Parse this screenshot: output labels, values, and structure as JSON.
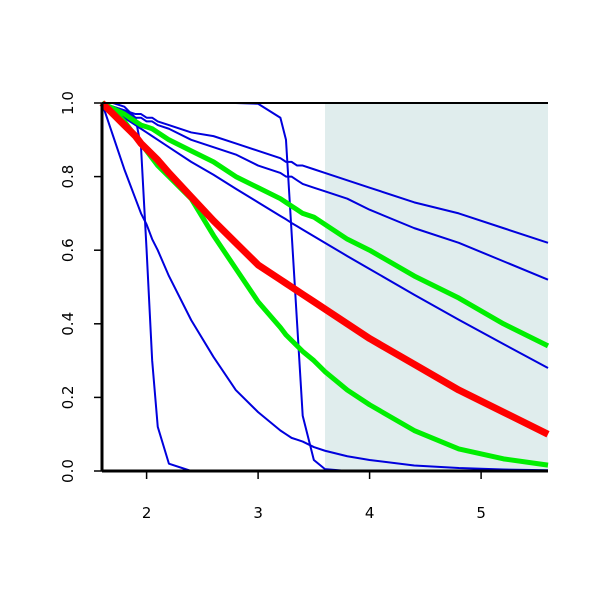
{
  "chart_data": {
    "type": "line",
    "x": [
      1.6,
      1.7,
      1.8,
      1.9,
      1.95,
      2.0,
      2.05,
      2.1,
      2.2,
      2.4,
      2.6,
      2.8,
      3.0,
      3.2,
      3.25,
      3.3,
      3.35,
      3.4,
      3.5,
      3.6,
      3.8,
      4.0,
      4.4,
      4.8,
      5.2,
      5.6
    ],
    "series": [
      {
        "color": "#0000dd",
        "values": [
          1,
          0.99,
          0.98,
          0.97,
          0.97,
          0.96,
          0.96,
          0.95,
          0.94,
          0.92,
          0.91,
          0.89,
          0.87,
          0.85,
          0.84,
          0.84,
          0.83,
          0.83,
          0.82,
          0.81,
          0.79,
          0.77,
          0.73,
          0.7,
          0.66,
          0.62
        ]
      },
      {
        "color": "#0000dd",
        "values": [
          1,
          0.99,
          0.98,
          0.96,
          0.96,
          0.95,
          0.95,
          0.94,
          0.93,
          0.9,
          0.88,
          0.86,
          0.83,
          0.81,
          0.8,
          0.8,
          0.79,
          0.78,
          0.77,
          0.76,
          0.74,
          0.71,
          0.66,
          0.62,
          0.57,
          0.52
        ]
      },
      {
        "color": "#0000dd",
        "values": [
          1,
          0.98,
          0.96,
          0.94,
          0.93,
          0.92,
          0.91,
          0.9,
          0.88,
          0.84,
          0.805,
          0.767,
          0.73,
          0.693,
          0.684,
          0.674,
          0.665,
          0.656,
          0.638,
          0.62,
          0.584,
          0.549,
          0.479,
          0.411,
          0.345,
          0.28
        ]
      },
      {
        "color": "#0000dd",
        "values": [
          1,
          1,
          0.99,
          0.96,
          0.88,
          0.6,
          0.3,
          0.12,
          0.02,
          0,
          0,
          0,
          0,
          0,
          0,
          0,
          0,
          0,
          0,
          0,
          0,
          0,
          0,
          0,
          0,
          0
        ]
      },
      {
        "color": "#0000dd",
        "values": [
          1,
          1,
          1,
          1,
          1,
          1,
          1,
          1,
          1,
          1,
          1,
          1,
          0.998,
          0.96,
          0.9,
          0.65,
          0.4,
          0.15,
          0.03,
          0.005,
          0,
          0,
          0,
          0,
          0,
          0
        ]
      },
      {
        "color": "#0000dd",
        "values": [
          1,
          0.91,
          0.82,
          0.74,
          0.7,
          0.67,
          0.63,
          0.6,
          0.53,
          0.41,
          0.31,
          0.22,
          0.16,
          0.11,
          0.1,
          0.09,
          0.085,
          0.08,
          0.065,
          0.055,
          0.04,
          0.03,
          0.015,
          0.008,
          0.004,
          0.002
        ]
      },
      {
        "color": "#00ee00",
        "values": [
          1,
          0.985,
          0.97,
          0.95,
          0.94,
          0.935,
          0.93,
          0.92,
          0.9,
          0.87,
          0.84,
          0.8,
          0.77,
          0.74,
          0.73,
          0.72,
          0.71,
          0.7,
          0.69,
          0.67,
          0.63,
          0.6,
          0.53,
          0.47,
          0.4,
          0.34
        ]
      },
      {
        "color": "#00ee00",
        "values": [
          1,
          0.98,
          0.95,
          0.91,
          0.89,
          0.87,
          0.85,
          0.83,
          0.8,
          0.74,
          0.64,
          0.55,
          0.46,
          0.39,
          0.37,
          0.355,
          0.34,
          0.325,
          0.3,
          0.27,
          0.22,
          0.18,
          0.11,
          0.06,
          0.033,
          0.016
        ]
      },
      {
        "color": "#ff0000",
        "values": [
          1,
          0.97,
          0.94,
          0.91,
          0.89,
          0.875,
          0.86,
          0.845,
          0.81,
          0.745,
          0.68,
          0.62,
          0.56,
          0.52,
          0.51,
          0.5,
          0.49,
          0.48,
          0.46,
          0.44,
          0.4,
          0.36,
          0.29,
          0.22,
          0.16,
          0.1
        ]
      }
    ],
    "shaded_region": {
      "xlim": [
        3.6,
        5.6
      ],
      "color": "#e0eded"
    },
    "xlim": [
      1.6,
      5.6
    ],
    "ylim": [
      0,
      1
    ],
    "xticks": [
      2,
      3,
      4,
      5
    ],
    "yticks": [
      {
        "value": 0,
        "label": "0.0"
      },
      0.2,
      0.4,
      0.6,
      0.8,
      {
        "value": 1,
        "label": "1.0"
      }
    ]
  }
}
